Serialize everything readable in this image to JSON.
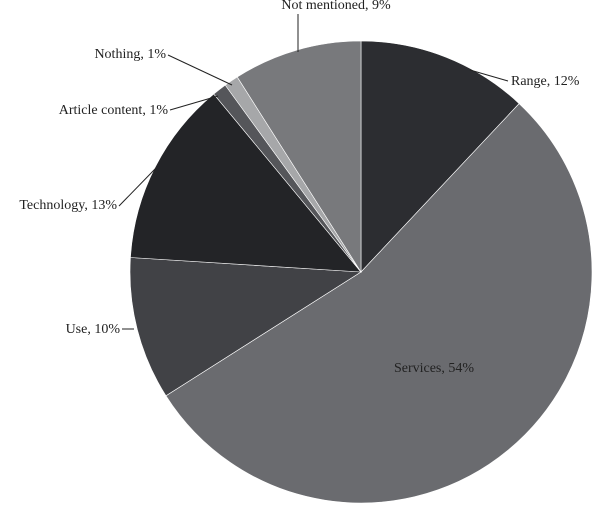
{
  "chart_data": {
    "type": "pie",
    "categories": [
      "Range, 12%",
      "Services, 54%",
      "Use, 10%",
      "Technology, 13%",
      "Article content, 1%",
      "Nothing, 1%",
      "Not mentioned, 9%"
    ],
    "values": [
      12,
      54,
      10,
      13,
      1,
      1,
      9
    ],
    "colors": [
      "#2c2d31",
      "#6a6b6f",
      "#414246",
      "#232427",
      "#55565a",
      "#a6a7a9",
      "#78797c"
    ]
  }
}
